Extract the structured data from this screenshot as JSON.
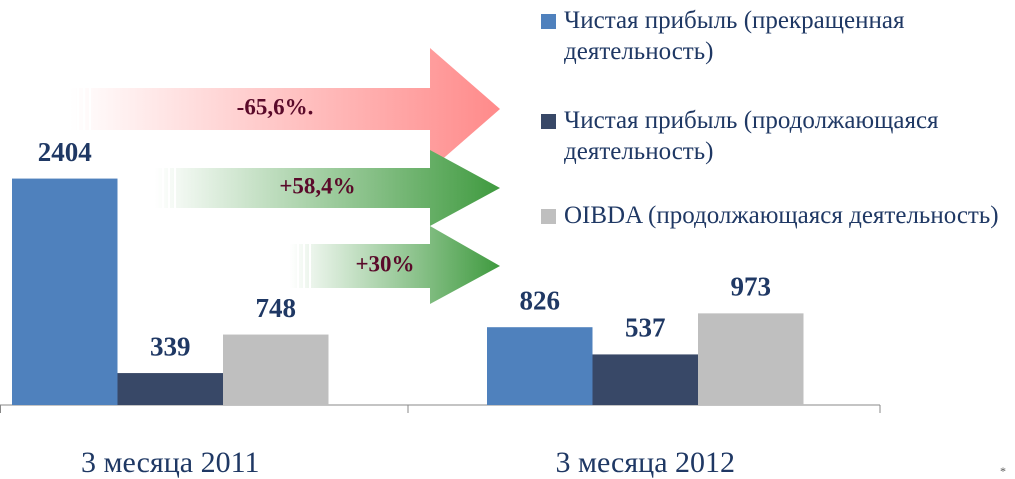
{
  "chart_data": {
    "type": "bar",
    "categories": [
      "3 месяца 2011",
      "3 месяца 2012"
    ],
    "series": [
      {
        "name": "Чистая прибыль (прекращенная деятельность)",
        "color": "#4f81bd",
        "values": [
          2404,
          826
        ]
      },
      {
        "name": "Чистая прибыль (продолжающаяся деятельность)",
        "color": "#384867",
        "values": [
          339,
          537
        ]
      },
      {
        "name": "OIBDA (продолжающаяся деятельность)",
        "color": "#bfbfbf",
        "values": [
          748,
          973
        ]
      }
    ],
    "ylim": [
      0,
      4300
    ],
    "annotations": [
      {
        "text": "-65,6%.",
        "color": "#ff8a8a"
      },
      {
        "text": "+58,4%",
        "color": "#3f9a3f"
      },
      {
        "text": "+30%",
        "color": "#3f9a3f"
      }
    ],
    "footnote": "*"
  }
}
